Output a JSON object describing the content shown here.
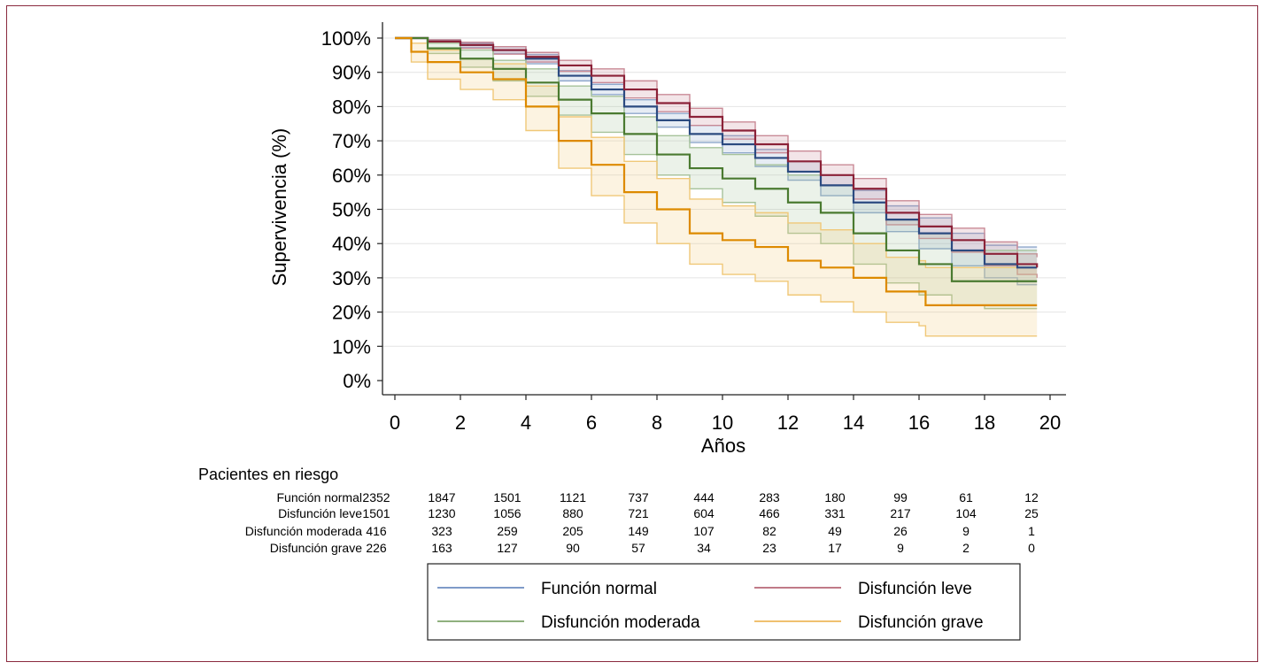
{
  "chart_data": {
    "type": "line",
    "subtype": "kaplan-meier",
    "title": "",
    "xlabel": "Años",
    "ylabel": "Supervivencia (%)",
    "xlim": [
      0,
      20
    ],
    "ylim": [
      0,
      100
    ],
    "x_ticks": [
      "0",
      "2",
      "4",
      "6",
      "8",
      "10",
      "12",
      "14",
      "16",
      "18",
      "20"
    ],
    "y_ticks": [
      "0%",
      "10%",
      "20%",
      "30%",
      "40%",
      "50%",
      "60%",
      "70%",
      "80%",
      "90%",
      "100%"
    ],
    "grid": true,
    "legend_position": "bottom",
    "series": [
      {
        "name": "Función normal",
        "color": "#2b4a80",
        "ci_color": "#8fa8cc",
        "points": [
          [
            0,
            100
          ],
          [
            1,
            99
          ],
          [
            2,
            98
          ],
          [
            3,
            96.5
          ],
          [
            4,
            94
          ],
          [
            5,
            89
          ],
          [
            6,
            85
          ],
          [
            7,
            80
          ],
          [
            8,
            76
          ],
          [
            9,
            72
          ],
          [
            10,
            69
          ],
          [
            11,
            65
          ],
          [
            12,
            61
          ],
          [
            13,
            57
          ],
          [
            14,
            52
          ],
          [
            15,
            47
          ],
          [
            16,
            43
          ],
          [
            17,
            38
          ],
          [
            18,
            34
          ],
          [
            19,
            33
          ],
          [
            19.6,
            33
          ]
        ],
        "ci_upper": [
          [
            0,
            100
          ],
          [
            1,
            99.5
          ],
          [
            2,
            98.6
          ],
          [
            3,
            97.5
          ],
          [
            4,
            95.2
          ],
          [
            5,
            90.5
          ],
          [
            6,
            86.5
          ],
          [
            7,
            82
          ],
          [
            8,
            78
          ],
          [
            9,
            74.5
          ],
          [
            10,
            71.5
          ],
          [
            11,
            67.5
          ],
          [
            12,
            64
          ],
          [
            13,
            60
          ],
          [
            14,
            55.5
          ],
          [
            15,
            51
          ],
          [
            16,
            47.5
          ],
          [
            17,
            43
          ],
          [
            18,
            39.5
          ],
          [
            19,
            39
          ],
          [
            19.6,
            39
          ]
        ],
        "ci_lower": [
          [
            0,
            100
          ],
          [
            1,
            98.5
          ],
          [
            2,
            97.2
          ],
          [
            3,
            95.5
          ],
          [
            4,
            92.5
          ],
          [
            5,
            87.5
          ],
          [
            6,
            83.5
          ],
          [
            7,
            78
          ],
          [
            8,
            74
          ],
          [
            9,
            69.5
          ],
          [
            10,
            66.5
          ],
          [
            11,
            62.5
          ],
          [
            12,
            58.5
          ],
          [
            13,
            54
          ],
          [
            14,
            49
          ],
          [
            15,
            43.5
          ],
          [
            16,
            38.5
          ],
          [
            17,
            33.5
          ],
          [
            18,
            30
          ],
          [
            19,
            28
          ],
          [
            19.6,
            28
          ]
        ]
      },
      {
        "name": "Disfunción leve",
        "color": "#8b2238",
        "ci_color": "#c98a96",
        "points": [
          [
            0,
            100
          ],
          [
            1,
            99
          ],
          [
            2,
            98
          ],
          [
            3,
            96.5
          ],
          [
            4,
            94.5
          ],
          [
            5,
            92
          ],
          [
            6,
            89
          ],
          [
            7,
            85
          ],
          [
            8,
            81
          ],
          [
            9,
            77
          ],
          [
            10,
            73
          ],
          [
            11,
            69
          ],
          [
            12,
            64
          ],
          [
            13,
            60
          ],
          [
            14,
            56
          ],
          [
            15,
            49
          ],
          [
            16,
            45
          ],
          [
            17,
            41
          ],
          [
            18,
            37
          ],
          [
            19,
            34
          ],
          [
            19.6,
            33
          ]
        ],
        "ci_upper": [
          [
            0,
            100
          ],
          [
            1,
            99.5
          ],
          [
            2,
            98.8
          ],
          [
            3,
            97.5
          ],
          [
            4,
            95.8
          ],
          [
            5,
            93.5
          ],
          [
            6,
            91
          ],
          [
            7,
            87.5
          ],
          [
            8,
            83.5
          ],
          [
            9,
            79.5
          ],
          [
            10,
            75.5
          ],
          [
            11,
            71.5
          ],
          [
            12,
            67
          ],
          [
            13,
            63
          ],
          [
            14,
            59
          ],
          [
            15,
            52.5
          ],
          [
            16,
            48.5
          ],
          [
            17,
            44.5
          ],
          [
            18,
            40.5
          ],
          [
            19,
            37
          ],
          [
            19.6,
            36
          ]
        ],
        "ci_lower": [
          [
            0,
            100
          ],
          [
            1,
            98.5
          ],
          [
            2,
            97
          ],
          [
            3,
            95.3
          ],
          [
            4,
            93
          ],
          [
            5,
            90.3
          ],
          [
            6,
            87
          ],
          [
            7,
            82.5
          ],
          [
            8,
            78.5
          ],
          [
            9,
            74.5
          ],
          [
            10,
            70.5
          ],
          [
            11,
            66.5
          ],
          [
            12,
            61
          ],
          [
            13,
            57
          ],
          [
            14,
            53
          ],
          [
            15,
            45.5
          ],
          [
            16,
            41.5
          ],
          [
            17,
            37.5
          ],
          [
            18,
            33.5
          ],
          [
            19,
            31
          ],
          [
            19.6,
            30
          ]
        ]
      },
      {
        "name": "Disfunción moderada",
        "color": "#4a7a30",
        "ci_color": "#a6c29a",
        "points": [
          [
            0,
            100
          ],
          [
            1,
            97
          ],
          [
            2,
            94
          ],
          [
            3,
            91
          ],
          [
            4,
            87
          ],
          [
            5,
            82
          ],
          [
            6,
            78
          ],
          [
            7,
            72
          ],
          [
            8,
            66
          ],
          [
            9,
            62
          ],
          [
            10,
            59
          ],
          [
            11,
            56
          ],
          [
            12,
            52
          ],
          [
            13,
            49
          ],
          [
            14,
            43
          ],
          [
            15,
            38
          ],
          [
            16,
            34
          ],
          [
            17,
            29
          ],
          [
            18,
            29
          ],
          [
            19.6,
            29
          ]
        ],
        "ci_upper": [
          [
            0,
            100
          ],
          [
            1,
            98.5
          ],
          [
            2,
            96.5
          ],
          [
            3,
            93.5
          ],
          [
            4,
            91
          ],
          [
            5,
            86
          ],
          [
            6,
            83
          ],
          [
            7,
            77
          ],
          [
            8,
            71.5
          ],
          [
            9,
            68
          ],
          [
            10,
            66
          ],
          [
            11,
            63
          ],
          [
            12,
            60
          ],
          [
            13,
            57
          ],
          [
            14,
            52
          ],
          [
            15,
            47
          ],
          [
            16,
            43
          ],
          [
            17,
            38
          ],
          [
            18,
            38
          ],
          [
            19.6,
            38
          ]
        ],
        "ci_lower": [
          [
            0,
            100
          ],
          [
            1,
            95.5
          ],
          [
            2,
            91.5
          ],
          [
            3,
            87.5
          ],
          [
            4,
            83
          ],
          [
            5,
            77.5
          ],
          [
            6,
            72.5
          ],
          [
            7,
            66
          ],
          [
            8,
            60
          ],
          [
            9,
            56
          ],
          [
            10,
            52
          ],
          [
            11,
            48
          ],
          [
            12,
            43
          ],
          [
            13,
            40
          ],
          [
            14,
            34
          ],
          [
            15,
            28.5
          ],
          [
            16,
            25
          ],
          [
            17,
            22
          ],
          [
            18,
            21
          ],
          [
            19.6,
            21
          ]
        ]
      },
      {
        "name": "Disfunción grave",
        "color": "#dd8a00",
        "ci_color": "#f0c878",
        "points": [
          [
            0,
            100
          ],
          [
            0.5,
            96
          ],
          [
            1,
            93
          ],
          [
            2,
            90
          ],
          [
            3,
            88
          ],
          [
            4,
            80
          ],
          [
            5,
            70
          ],
          [
            6,
            63
          ],
          [
            7,
            55
          ],
          [
            8,
            50
          ],
          [
            9,
            43
          ],
          [
            10,
            41
          ],
          [
            11,
            39
          ],
          [
            12,
            35
          ],
          [
            13,
            33
          ],
          [
            14,
            30
          ],
          [
            15,
            26
          ],
          [
            16,
            26
          ],
          [
            16.2,
            22
          ],
          [
            19.6,
            22
          ]
        ],
        "ci_upper": [
          [
            0,
            100
          ],
          [
            0.5,
            98.5
          ],
          [
            1,
            96.5
          ],
          [
            2,
            94
          ],
          [
            3,
            92.5
          ],
          [
            4,
            86
          ],
          [
            5,
            77
          ],
          [
            6,
            71
          ],
          [
            7,
            64
          ],
          [
            8,
            59
          ],
          [
            9,
            53
          ],
          [
            10,
            51
          ],
          [
            11,
            49
          ],
          [
            12,
            46
          ],
          [
            13,
            44
          ],
          [
            14,
            40
          ],
          [
            15,
            36
          ],
          [
            16,
            35
          ],
          [
            16.2,
            33
          ],
          [
            19.6,
            33
          ]
        ],
        "ci_lower": [
          [
            0,
            100
          ],
          [
            0.5,
            93
          ],
          [
            1,
            88
          ],
          [
            2,
            85
          ],
          [
            3,
            82
          ],
          [
            4,
            73
          ],
          [
            5,
            62
          ],
          [
            6,
            54
          ],
          [
            7,
            46
          ],
          [
            8,
            40
          ],
          [
            9,
            34
          ],
          [
            10,
            31
          ],
          [
            11,
            29
          ],
          [
            12,
            25
          ],
          [
            13,
            23
          ],
          [
            14,
            20
          ],
          [
            15,
            17
          ],
          [
            16,
            16
          ],
          [
            16.2,
            13
          ],
          [
            19.6,
            13
          ]
        ]
      }
    ],
    "risk_table": {
      "title": "Pacientes en riesgo",
      "times": [
        0,
        2,
        4,
        6,
        8,
        10,
        12,
        14,
        16,
        18,
        20
      ],
      "rows": [
        {
          "label": "Función normal",
          "values": [
            "2352",
            "1847",
            "1501",
            "1121",
            "737",
            "444",
            "283",
            "180",
            "99",
            "61",
            "12"
          ]
        },
        {
          "label": "Disfunción leve",
          "values": [
            "1501",
            "1230",
            "1056",
            "880",
            "721",
            "604",
            "466",
            "331",
            "217",
            "104",
            "25"
          ]
        },
        {
          "label": "Disfunción moderada",
          "values": [
            "416",
            "323",
            "259",
            "205",
            "149",
            "107",
            "82",
            "49",
            "26",
            "9",
            "1"
          ]
        },
        {
          "label": "Disfunción grave",
          "values": [
            "226",
            "163",
            "127",
            "90",
            "57",
            "34",
            "23",
            "17",
            "9",
            "2",
            "0"
          ]
        }
      ]
    }
  }
}
